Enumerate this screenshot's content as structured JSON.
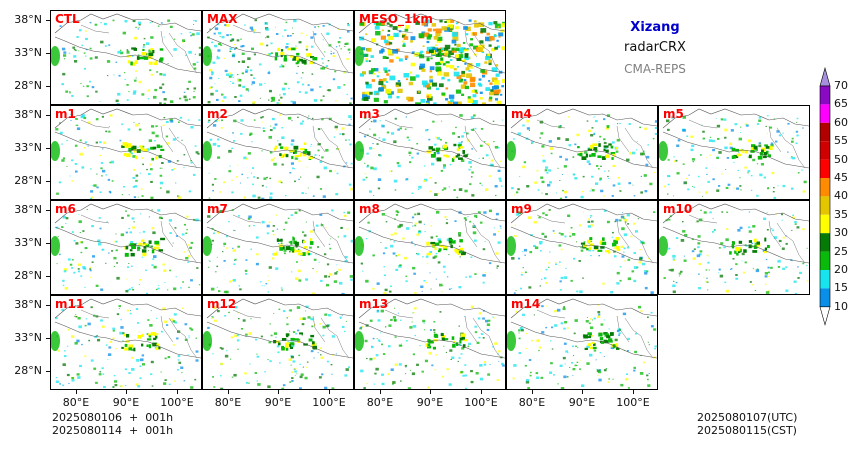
{
  "title": {
    "region": "Xizang",
    "variable": "radarCRX",
    "model": "CMA-REPS"
  },
  "panels": [
    {
      "label": "CTL",
      "row": 0,
      "col": 0,
      "style": "ens"
    },
    {
      "label": "MAX",
      "row": 0,
      "col": 1,
      "style": "max"
    },
    {
      "label": "MESO_1km",
      "row": 0,
      "col": 2,
      "style": "meso"
    },
    {
      "label": "m1",
      "row": 1,
      "col": 0,
      "style": "ens"
    },
    {
      "label": "m2",
      "row": 1,
      "col": 1,
      "style": "ens"
    },
    {
      "label": "m3",
      "row": 1,
      "col": 2,
      "style": "ens"
    },
    {
      "label": "m4",
      "row": 1,
      "col": 3,
      "style": "ens"
    },
    {
      "label": "m5",
      "row": 1,
      "col": 4,
      "style": "ens"
    },
    {
      "label": "m6",
      "row": 2,
      "col": 0,
      "style": "ens"
    },
    {
      "label": "m7",
      "row": 2,
      "col": 1,
      "style": "ens"
    },
    {
      "label": "m8",
      "row": 2,
      "col": 2,
      "style": "ens"
    },
    {
      "label": "m9",
      "row": 2,
      "col": 3,
      "style": "ens"
    },
    {
      "label": "m10",
      "row": 2,
      "col": 4,
      "style": "ens"
    },
    {
      "label": "m11",
      "row": 3,
      "col": 0,
      "style": "ens"
    },
    {
      "label": "m12",
      "row": 3,
      "col": 1,
      "style": "ens"
    },
    {
      "label": "m13",
      "row": 3,
      "col": 2,
      "style": "ens"
    },
    {
      "label": "m14",
      "row": 3,
      "col": 3,
      "style": "ens"
    }
  ],
  "axes": {
    "lat_labels": [
      "38°N",
      "33°N",
      "28°N"
    ],
    "lon_labels": [
      "80°E",
      "90°E",
      "100°E"
    ]
  },
  "colorbar": {
    "levels": [
      "10",
      "15",
      "20",
      "25",
      "30",
      "35",
      "40",
      "45",
      "50",
      "55",
      "60",
      "65",
      "70"
    ],
    "colors": [
      "#0a8fe8",
      "#17e4ee",
      "#0aba0a",
      "#067a06",
      "#ffff00",
      "#e3c600",
      "#ff8c00",
      "#ff0000",
      "#d00000",
      "#b00000",
      "#ff00ff",
      "#8a0ac4",
      "#a78fe0"
    ]
  },
  "footer": {
    "init_utc": "2025080106  +  001h",
    "init_cst": "2025080114  +  001h",
    "valid_utc": "2025080107(UTC)",
    "valid_cst": "2025080115(CST)"
  }
}
